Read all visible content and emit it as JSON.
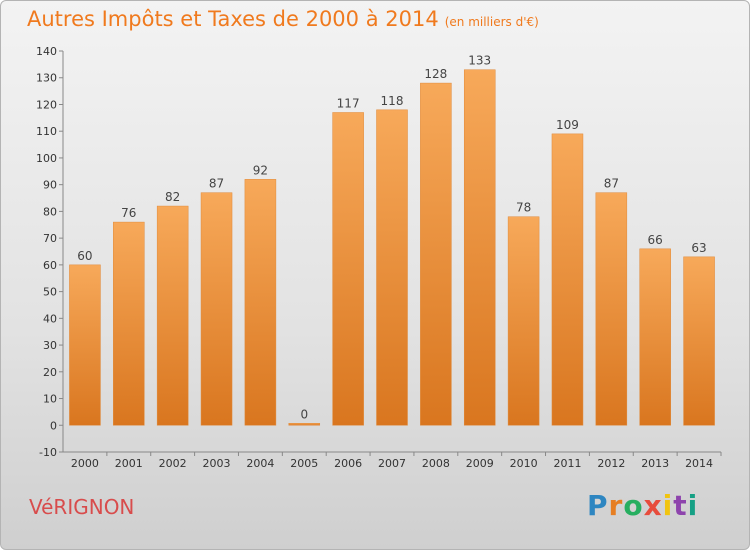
{
  "title": "Autres Impôts et Taxes de 2000 à 2014",
  "unit": "(en milliers d'€)",
  "commune": "VéRIGNON",
  "logo": "Proxiti",
  "colors": {
    "title": "#f07a1e",
    "commune": "#d84c4c",
    "bar_light": "#f7a95a",
    "bar_dark": "#d9761f",
    "logo": [
      "#2e86c1",
      "#e67e22",
      "#27ae60",
      "#e74c3c",
      "#f1c40f",
      "#8e44ad",
      "#16a085"
    ]
  },
  "chart_data": {
    "type": "bar",
    "title": "Autres Impôts et Taxes de 2000 à 2014",
    "subtitle": "(en milliers d'€)",
    "categories": [
      "2000",
      "2001",
      "2002",
      "2003",
      "2004",
      "2005",
      "2006",
      "2007",
      "2008",
      "2009",
      "2010",
      "2011",
      "2012",
      "2013",
      "2014"
    ],
    "values": [
      60,
      76,
      82,
      87,
      92,
      0,
      117,
      118,
      128,
      133,
      78,
      109,
      87,
      66,
      63
    ],
    "ylim": [
      -10,
      140
    ],
    "yticks": [
      -10,
      0,
      10,
      20,
      30,
      40,
      50,
      60,
      70,
      80,
      90,
      100,
      110,
      120,
      130,
      140
    ],
    "grid": false,
    "legend": "none"
  }
}
